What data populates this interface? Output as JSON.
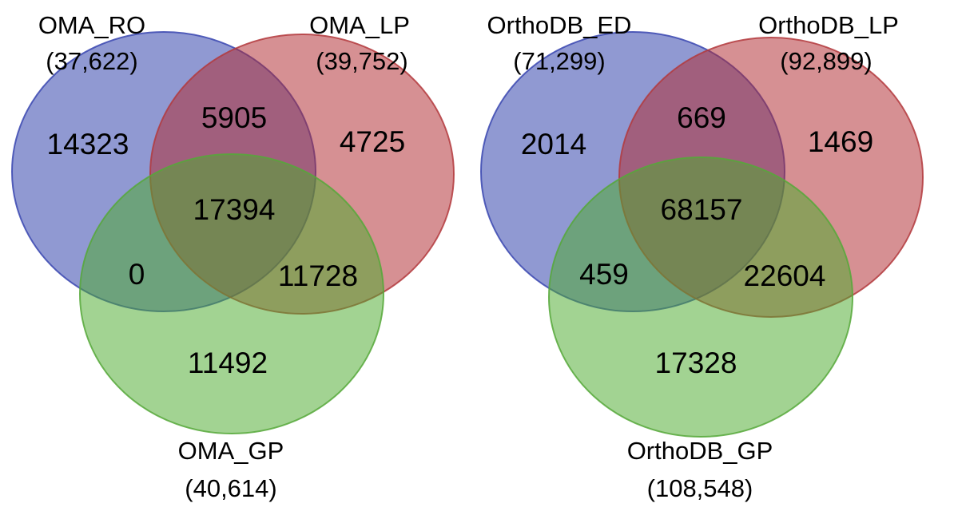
{
  "diagrams": [
    {
      "id": "oma",
      "sets": [
        {
          "key": "a",
          "name": "OMA_RO",
          "total": "(37,622)",
          "fill": "#2b3ca8",
          "stroke": "#3a47b0"
        },
        {
          "key": "b",
          "name": "OMA_LP",
          "total": "(39,752)",
          "fill": "#b02a30",
          "stroke": "#b33a3d"
        },
        {
          "key": "c",
          "name": "OMA_GP",
          "total": "(40,614)",
          "fill": "#4caa2e",
          "stroke": "#56a83a"
        }
      ],
      "regions": {
        "a_only": "14323",
        "ab": "5905",
        "b_only": "4725",
        "abc": "17394",
        "ac": "0",
        "bc": "11728",
        "c_only": "11492"
      }
    },
    {
      "id": "orthodb",
      "sets": [
        {
          "key": "a",
          "name": "OrthoDB_ED",
          "total": "(71,299)",
          "fill": "#2b3ca8",
          "stroke": "#3a47b0"
        },
        {
          "key": "b",
          "name": "OrthoDB_LP",
          "total": "(92,899)",
          "fill": "#b02a30",
          "stroke": "#b33a3d"
        },
        {
          "key": "c",
          "name": "OrthoDB_GP",
          "total": "(108,548)",
          "fill": "#4caa2e",
          "stroke": "#56a83a"
        }
      ],
      "regions": {
        "a_only": "2014",
        "ab": "669",
        "b_only": "1469",
        "abc": "68157",
        "ac": "459",
        "bc": "22604",
        "c_only": "17328"
      }
    }
  ]
}
